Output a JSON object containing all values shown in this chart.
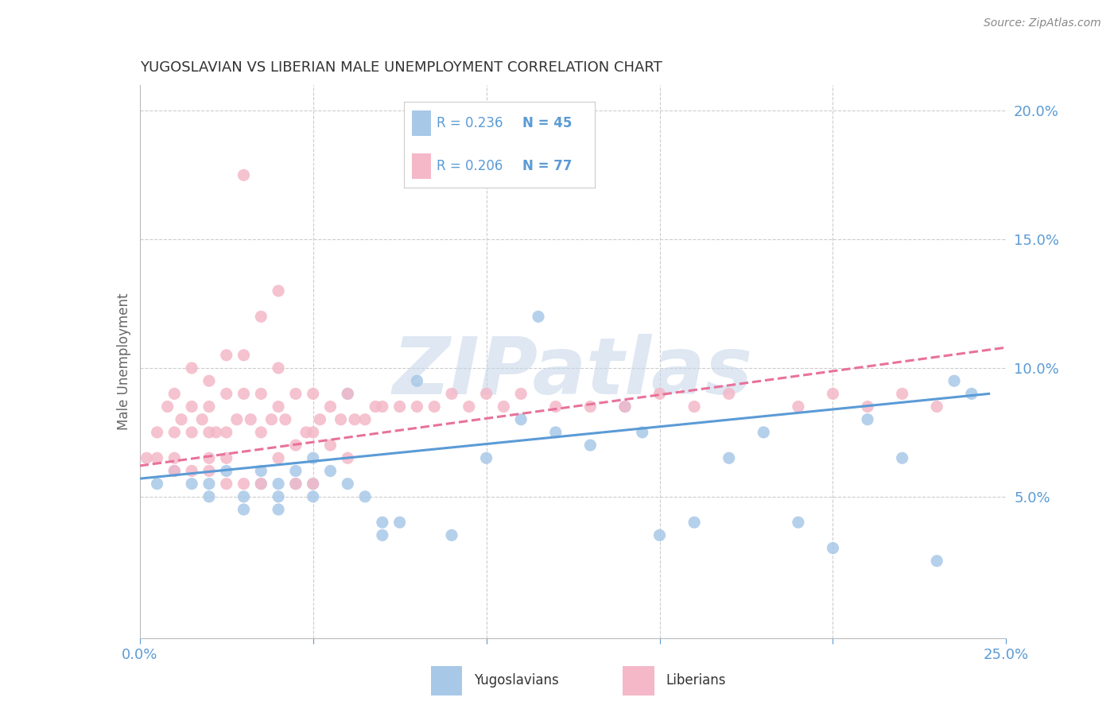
{
  "title": "YUGOSLAVIAN VS LIBERIAN MALE UNEMPLOYMENT CORRELATION CHART",
  "source_text": "Source: ZipAtlas.com",
  "ylabel": "Male Unemployment",
  "xlim": [
    0.0,
    0.25
  ],
  "ylim": [
    -0.005,
    0.21
  ],
  "yticks": [
    0.05,
    0.1,
    0.15,
    0.2
  ],
  "ytick_labels": [
    "5.0%",
    "10.0%",
    "15.0%",
    "20.0%"
  ],
  "xticks": [
    0.0,
    0.05,
    0.1,
    0.15,
    0.2,
    0.25
  ],
  "xtick_labels": [
    "0.0%",
    "",
    "",
    "",
    "",
    "25.0%"
  ],
  "blue_color": "#a8c8e8",
  "pink_color": "#f4b8c8",
  "blue_line_color": "#5b9bd5",
  "pink_line_color": "#e8729a",
  "legend_r_blue": "R = 0.236",
  "legend_n_blue": "N = 45",
  "legend_r_pink": "R = 0.206",
  "legend_n_pink": "N = 77",
  "blue_scatter_x": [
    0.005,
    0.01,
    0.015,
    0.02,
    0.02,
    0.025,
    0.03,
    0.03,
    0.035,
    0.035,
    0.04,
    0.04,
    0.04,
    0.045,
    0.045,
    0.05,
    0.05,
    0.05,
    0.055,
    0.06,
    0.06,
    0.065,
    0.07,
    0.07,
    0.075,
    0.08,
    0.09,
    0.1,
    0.11,
    0.115,
    0.12,
    0.13,
    0.14,
    0.145,
    0.15,
    0.16,
    0.17,
    0.18,
    0.19,
    0.2,
    0.21,
    0.22,
    0.23,
    0.235,
    0.24
  ],
  "blue_scatter_y": [
    0.055,
    0.06,
    0.055,
    0.055,
    0.05,
    0.06,
    0.05,
    0.045,
    0.06,
    0.055,
    0.055,
    0.05,
    0.045,
    0.06,
    0.055,
    0.065,
    0.055,
    0.05,
    0.06,
    0.09,
    0.055,
    0.05,
    0.04,
    0.035,
    0.04,
    0.095,
    0.035,
    0.065,
    0.08,
    0.12,
    0.075,
    0.07,
    0.085,
    0.075,
    0.035,
    0.04,
    0.065,
    0.075,
    0.04,
    0.03,
    0.08,
    0.065,
    0.025,
    0.095,
    0.09
  ],
  "pink_scatter_x": [
    0.002,
    0.005,
    0.005,
    0.008,
    0.01,
    0.01,
    0.01,
    0.01,
    0.012,
    0.015,
    0.015,
    0.015,
    0.015,
    0.018,
    0.02,
    0.02,
    0.02,
    0.02,
    0.02,
    0.022,
    0.025,
    0.025,
    0.025,
    0.025,
    0.025,
    0.028,
    0.03,
    0.03,
    0.03,
    0.03,
    0.032,
    0.035,
    0.035,
    0.035,
    0.035,
    0.038,
    0.04,
    0.04,
    0.04,
    0.04,
    0.042,
    0.045,
    0.045,
    0.045,
    0.048,
    0.05,
    0.05,
    0.05,
    0.052,
    0.055,
    0.055,
    0.058,
    0.06,
    0.06,
    0.062,
    0.065,
    0.068,
    0.07,
    0.075,
    0.08,
    0.085,
    0.09,
    0.095,
    0.1,
    0.105,
    0.11,
    0.12,
    0.13,
    0.14,
    0.15,
    0.16,
    0.17,
    0.19,
    0.2,
    0.21,
    0.22,
    0.23
  ],
  "pink_scatter_y": [
    0.065,
    0.075,
    0.065,
    0.085,
    0.09,
    0.075,
    0.065,
    0.06,
    0.08,
    0.1,
    0.085,
    0.075,
    0.06,
    0.08,
    0.095,
    0.085,
    0.075,
    0.065,
    0.06,
    0.075,
    0.105,
    0.09,
    0.075,
    0.065,
    0.055,
    0.08,
    0.175,
    0.105,
    0.09,
    0.055,
    0.08,
    0.12,
    0.09,
    0.075,
    0.055,
    0.08,
    0.13,
    0.1,
    0.085,
    0.065,
    0.08,
    0.09,
    0.07,
    0.055,
    0.075,
    0.09,
    0.075,
    0.055,
    0.08,
    0.085,
    0.07,
    0.08,
    0.09,
    0.065,
    0.08,
    0.08,
    0.085,
    0.085,
    0.085,
    0.085,
    0.085,
    0.09,
    0.085,
    0.09,
    0.085,
    0.09,
    0.085,
    0.085,
    0.085,
    0.09,
    0.085,
    0.09,
    0.085,
    0.09,
    0.085,
    0.09,
    0.085
  ],
  "blue_trend_x": [
    0.0,
    0.245
  ],
  "blue_trend_y": [
    0.057,
    0.09
  ],
  "pink_trend_x": [
    0.0,
    0.25
  ],
  "pink_trend_y": [
    0.062,
    0.108
  ],
  "background_color": "#ffffff",
  "grid_color": "#cccccc",
  "title_color": "#333333",
  "axis_label_color": "#5b9bd5",
  "ylabel_color": "#666666",
  "watermark_text": "ZIPatlas",
  "watermark_color": "#c8d8ea"
}
